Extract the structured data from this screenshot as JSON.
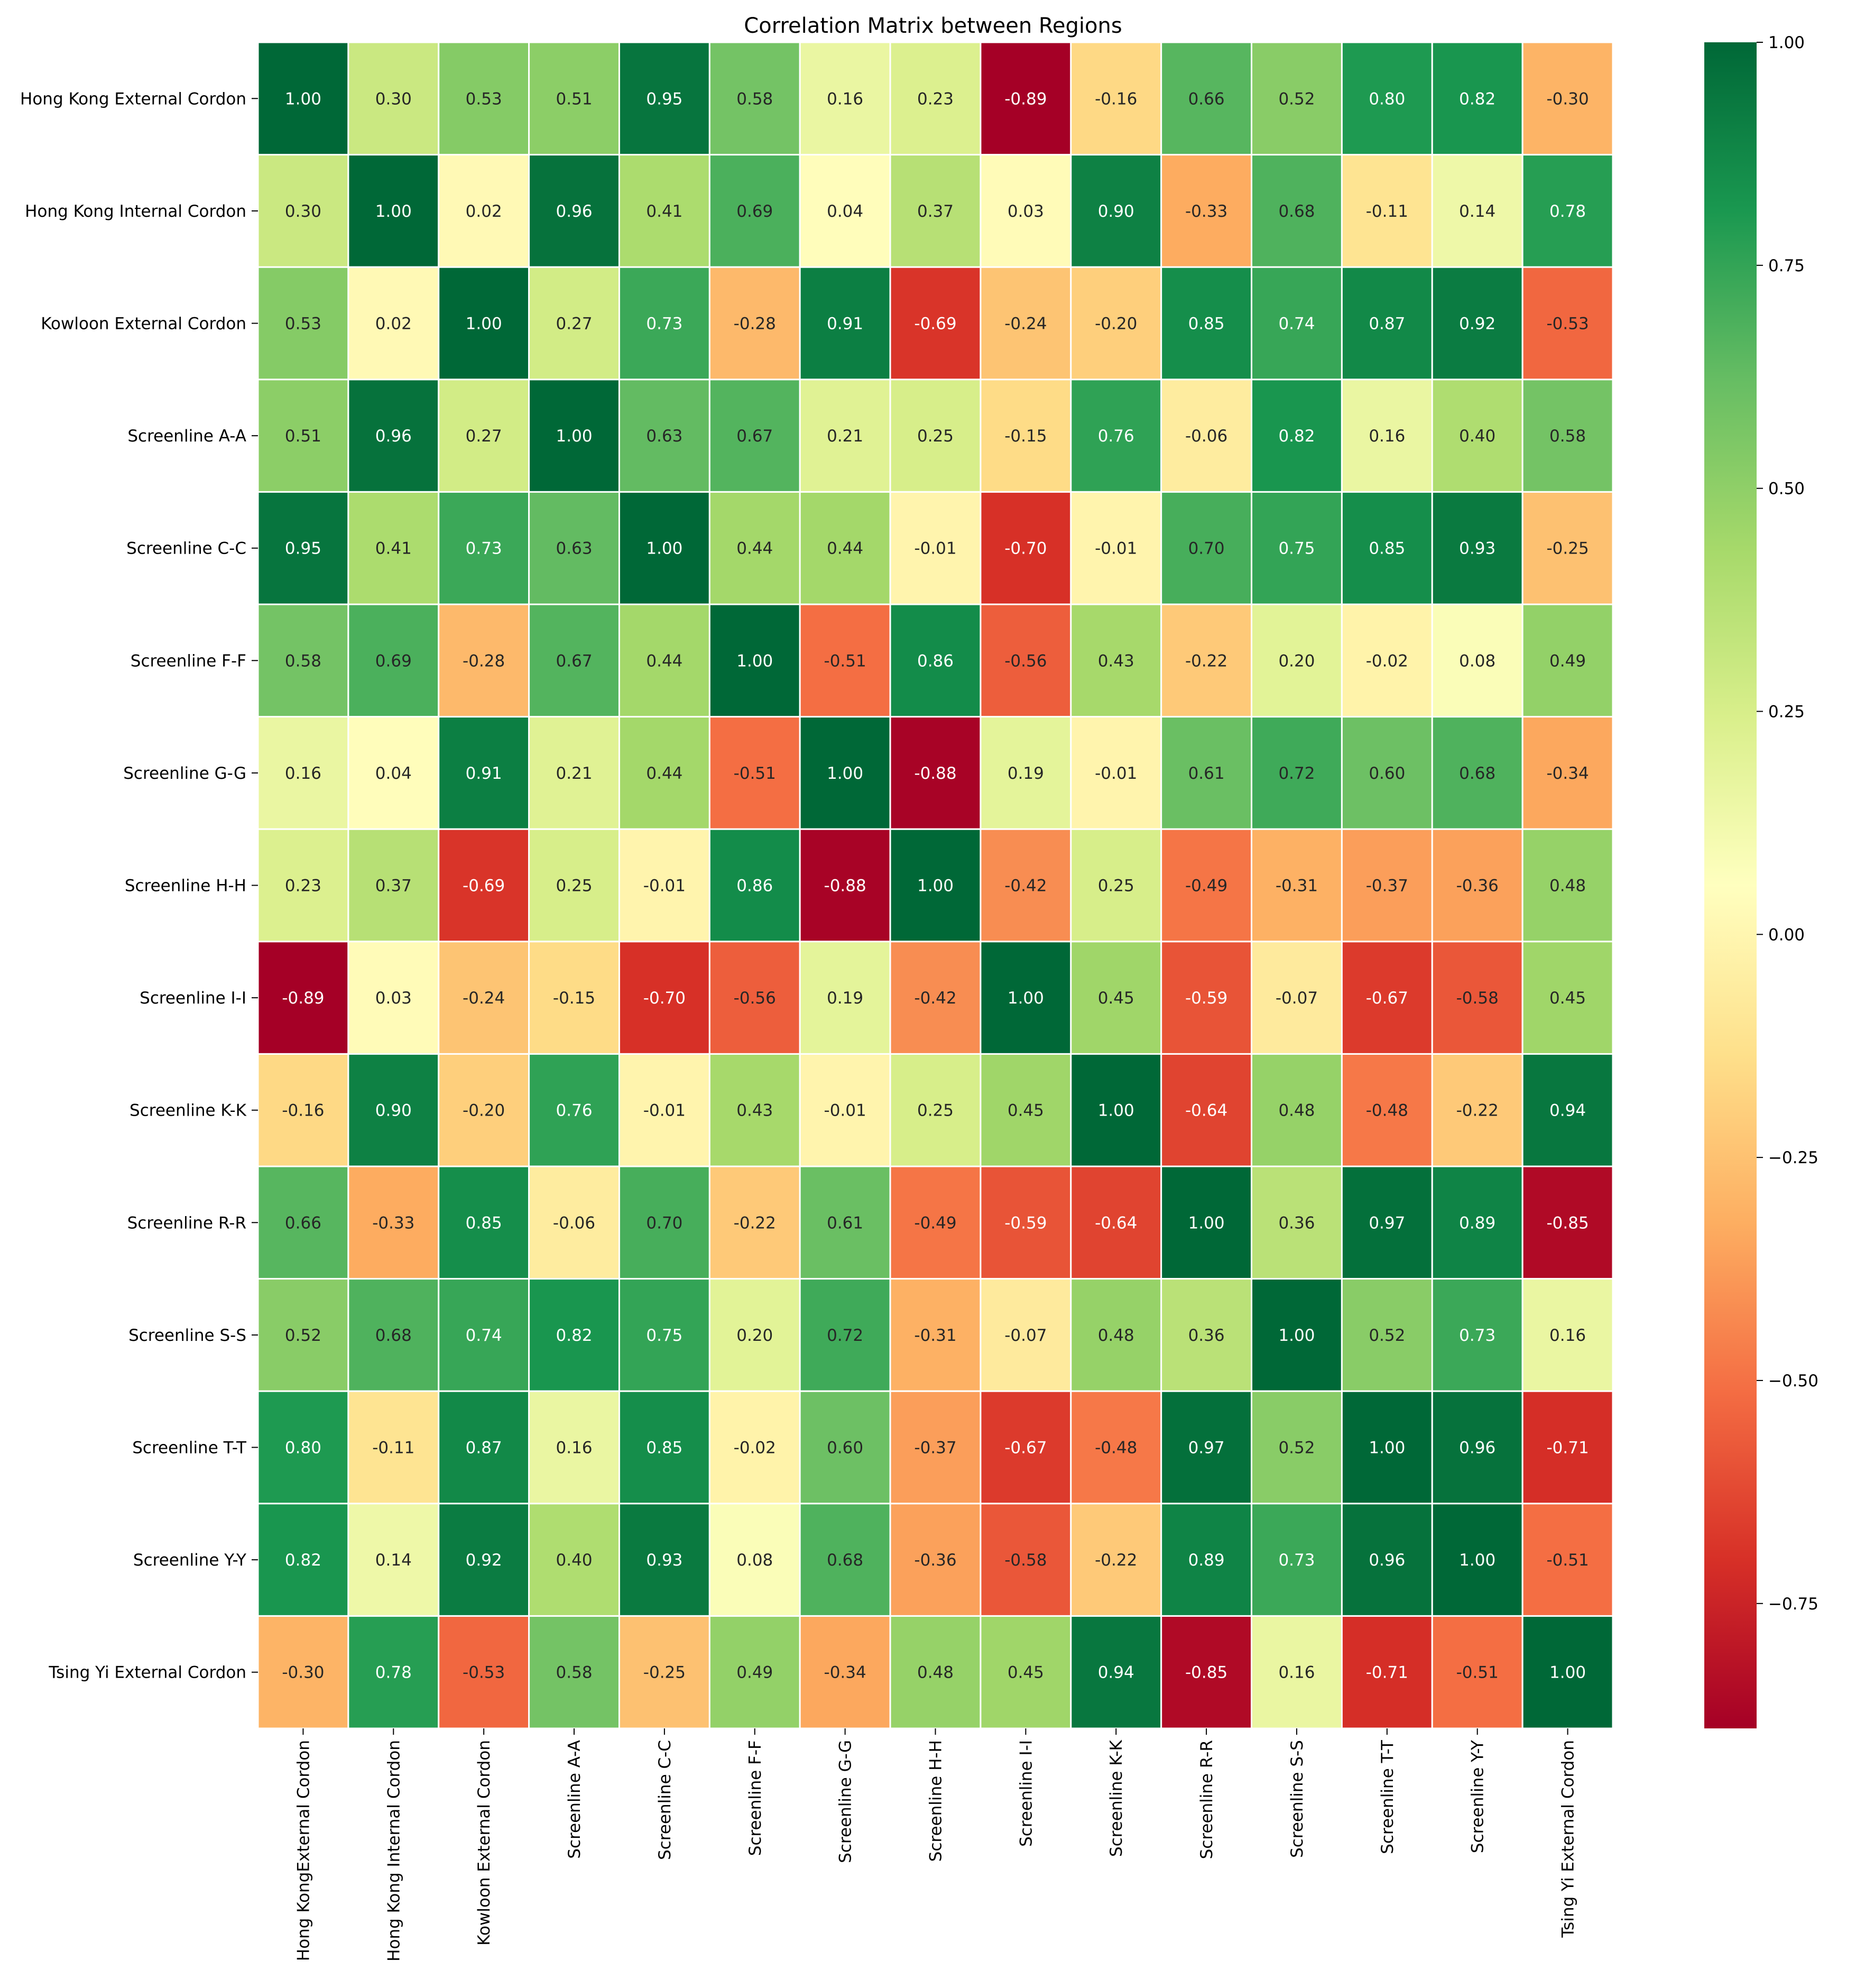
{
  "chart_data": {
    "type": "heatmap",
    "title": "Correlation Matrix between Regions",
    "row_labels": [
      "Hong Kong External Cordon",
      "Hong Kong Internal Cordon",
      "Kowloon External Cordon",
      "Screenline A-A",
      "Screenline C-C",
      "Screenline F-F",
      "Screenline G-G",
      "Screenline H-H",
      "Screenline I-I",
      "Screenline K-K",
      "Screenline R-R",
      "Screenline S-S",
      "Screenline T-T",
      "Screenline Y-Y",
      "Tsing Yi External Cordon"
    ],
    "col_labels": [
      "Hong KongExternal Cordon",
      "Hong Kong Internal Cordon",
      "Kowloon External Cordon",
      "Screenline A-A",
      "Screenline C-C",
      "Screenline F-F",
      "Screenline G-G",
      "Screenline H-H",
      "Screenline I-I",
      "Screenline K-K",
      "Screenline R-R",
      "Screenline S-S",
      "Screenline T-T",
      "Screenline Y-Y",
      "Tsing Yi External Cordon"
    ],
    "values": [
      [
        1.0,
        0.3,
        0.53,
        0.51,
        0.95,
        0.58,
        0.16,
        0.23,
        -0.89,
        -0.16,
        0.66,
        0.52,
        0.8,
        0.82,
        -0.3
      ],
      [
        0.3,
        1.0,
        0.02,
        0.96,
        0.41,
        0.69,
        0.04,
        0.37,
        0.03,
        0.9,
        -0.33,
        0.68,
        -0.11,
        0.14,
        0.78
      ],
      [
        0.53,
        0.02,
        1.0,
        0.27,
        0.73,
        -0.28,
        0.91,
        -0.69,
        -0.24,
        -0.2,
        0.85,
        0.74,
        0.87,
        0.92,
        -0.53
      ],
      [
        0.51,
        0.96,
        0.27,
        1.0,
        0.63,
        0.67,
        0.21,
        0.25,
        -0.15,
        0.76,
        -0.06,
        0.82,
        0.16,
        0.4,
        0.58
      ],
      [
        0.95,
        0.41,
        0.73,
        0.63,
        1.0,
        0.44,
        0.44,
        -0.01,
        -0.7,
        -0.01,
        0.7,
        0.75,
        0.85,
        0.93,
        -0.25
      ],
      [
        0.58,
        0.69,
        -0.28,
        0.67,
        0.44,
        1.0,
        -0.51,
        0.86,
        -0.56,
        0.43,
        -0.22,
        0.2,
        -0.02,
        0.08,
        0.49
      ],
      [
        0.16,
        0.04,
        0.91,
        0.21,
        0.44,
        -0.51,
        1.0,
        -0.88,
        0.19,
        -0.01,
        0.61,
        0.72,
        0.6,
        0.68,
        -0.34
      ],
      [
        0.23,
        0.37,
        -0.69,
        0.25,
        -0.01,
        0.86,
        -0.88,
        1.0,
        -0.42,
        0.25,
        -0.49,
        -0.31,
        -0.37,
        -0.36,
        0.48
      ],
      [
        -0.89,
        0.03,
        -0.24,
        -0.15,
        -0.7,
        -0.56,
        0.19,
        -0.42,
        1.0,
        0.45,
        -0.59,
        -0.07,
        -0.67,
        -0.58,
        0.45
      ],
      [
        -0.16,
        0.9,
        -0.2,
        0.76,
        -0.01,
        0.43,
        -0.01,
        0.25,
        0.45,
        1.0,
        -0.64,
        0.48,
        -0.48,
        -0.22,
        0.94
      ],
      [
        0.66,
        -0.33,
        0.85,
        -0.06,
        0.7,
        -0.22,
        0.61,
        -0.49,
        -0.59,
        -0.64,
        1.0,
        0.36,
        0.97,
        0.89,
        -0.85
      ],
      [
        0.52,
        0.68,
        0.74,
        0.82,
        0.75,
        0.2,
        0.72,
        -0.31,
        -0.07,
        0.48,
        0.36,
        1.0,
        0.52,
        0.73,
        0.16
      ],
      [
        0.8,
        -0.11,
        0.87,
        0.16,
        0.85,
        -0.02,
        0.6,
        -0.37,
        -0.67,
        -0.48,
        0.97,
        0.52,
        1.0,
        0.96,
        -0.71
      ],
      [
        0.82,
        0.14,
        0.92,
        0.4,
        0.93,
        0.08,
        0.68,
        -0.36,
        -0.58,
        -0.22,
        0.89,
        0.73,
        0.96,
        1.0,
        -0.51
      ],
      [
        -0.3,
        0.78,
        -0.53,
        0.58,
        -0.25,
        0.49,
        -0.34,
        0.48,
        0.45,
        0.94,
        -0.85,
        0.16,
        -0.71,
        -0.51,
        1.0
      ]
    ],
    "vmin": -0.89,
    "vmax": 1.0,
    "colormap": "RdYlGn",
    "colormap_stops": [
      "#a50026",
      "#d73027",
      "#f46d43",
      "#fdae61",
      "#fee08b",
      "#ffffbf",
      "#d9ef8b",
      "#a6d96a",
      "#66bd63",
      "#1a9850",
      "#006837"
    ],
    "colorbar_ticks": [
      1.0,
      0.75,
      0.5,
      0.25,
      0.0,
      -0.25,
      -0.5,
      -0.75
    ],
    "colorbar_tick_labels": [
      "1.00",
      "0.75",
      "0.50",
      "0.25",
      "0.00",
      "−0.25",
      "−0.50",
      "−0.75"
    ],
    "annotation_format": "2 decimals",
    "grid": "white cell borders",
    "xlabel": "",
    "ylabel": ""
  }
}
